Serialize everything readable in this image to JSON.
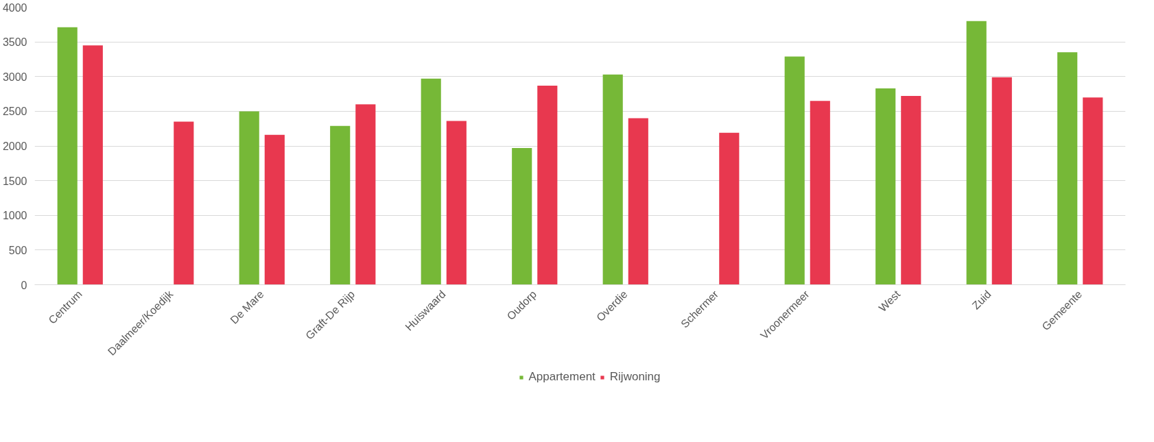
{
  "chart_data": {
    "type": "bar",
    "categories": [
      "Centrum",
      "Daalmeer/Koedijk",
      "De Mare",
      "Graft-De Rijp",
      "Huiswaard",
      "Oudorp",
      "Overdie",
      "Schermer",
      "Vroonermeer",
      "West",
      "Zuid",
      "Gemeente"
    ],
    "series": [
      {
        "name": "Appartement",
        "color": "#76b837",
        "values": [
          3710,
          null,
          2500,
          2290,
          2970,
          1970,
          3030,
          null,
          3290,
          2830,
          3800,
          3350
        ]
      },
      {
        "name": "Rijwoning",
        "color": "#e8384f",
        "values": [
          3450,
          2350,
          2160,
          2600,
          2360,
          2870,
          2400,
          2190,
          2650,
          2720,
          2990,
          2700
        ]
      }
    ],
    "ylim": [
      0,
      4000
    ],
    "yticks": [
      0,
      500,
      1000,
      1500,
      2000,
      2500,
      3000,
      3500,
      4000
    ],
    "grid": "y",
    "legend": "bottom"
  }
}
